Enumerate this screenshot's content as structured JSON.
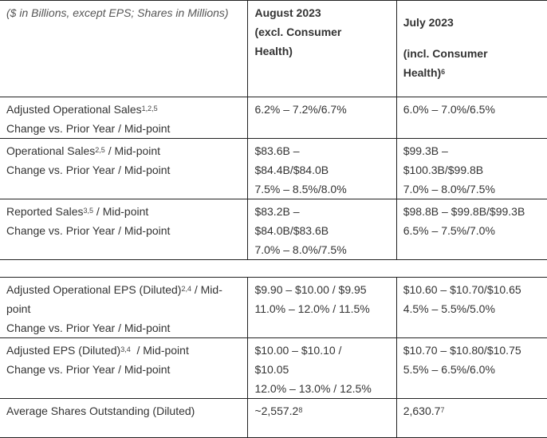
{
  "header": {
    "units_note": "($ in Billions, except EPS; Shares in Millions)",
    "col_august": [
      "August 2023",
      "(excl. Consumer",
      "Health)"
    ],
    "col_july": [
      "July 2023",
      "(incl. Consumer",
      "Health)"
    ],
    "col_july_sup": "6"
  },
  "rows": [
    {
      "label": [
        "Adjusted Operational Sales",
        "Change vs. Prior Year / Mid-point"
      ],
      "label_sup": "1,2,5",
      "label_after": "",
      "august": [
        "6.2% – 7.2%/6.7%"
      ],
      "july": [
        "6.0% – 7.0%/6.5%"
      ]
    },
    {
      "label": [
        "Operational Sales",
        "Change vs. Prior Year / Mid-point"
      ],
      "label_sup": "2,5",
      "label_after": " / Mid-point",
      "august": [
        "$83.6B –",
        "$84.4B/$84.0B",
        "7.5% – 8.5%/8.0%"
      ],
      "july": [
        "$99.3B –",
        "$100.3B/$99.8B",
        "7.0% – 8.0%/7.5%"
      ]
    },
    {
      "label": [
        "Reported Sales",
        "Change vs. Prior Year / Mid-point"
      ],
      "label_sup": "3,5",
      "label_after": " / Mid-point",
      "august": [
        "$83.2B –",
        "$84.0B/$83.6B",
        "7.0% – 8.0%/7.5%"
      ],
      "july": [
        "$98.8B – $99.8B/$99.3B",
        "6.5% – 7.5%/7.0%"
      ]
    },
    {
      "label": [
        "Adjusted Operational EPS (Diluted)",
        "point",
        "Change vs. Prior Year / Mid-point"
      ],
      "label_sup": "2,4",
      "label_after": " / Mid-",
      "august": [
        "$9.90 – $10.00 / $9.95",
        "11.0% – 12.0% / 11.5%"
      ],
      "july": [
        "$10.60 – $10.70/$10.65",
        "4.5% – 5.5%/5.0%"
      ]
    },
    {
      "label": [
        "Adjusted EPS (Diluted)",
        "Change vs. Prior Year / Mid-point"
      ],
      "label_sup": "3,4",
      "label_after": "  / Mid-point",
      "august": [
        "$10.00 – $10.10 /",
        "$10.05",
        "12.0% – 13.0% / 12.5%"
      ],
      "july": [
        "$10.70 – $10.80/$10.75",
        "5.5% – 6.5%/6.0%"
      ]
    },
    {
      "label": [
        "Average Shares Outstanding (Diluted)"
      ],
      "label_sup": "",
      "label_after": "",
      "august": [
        "~2,557.2"
      ],
      "august_sup": "8",
      "july": [
        "2,630.7"
      ],
      "july_sup": "7"
    }
  ]
}
